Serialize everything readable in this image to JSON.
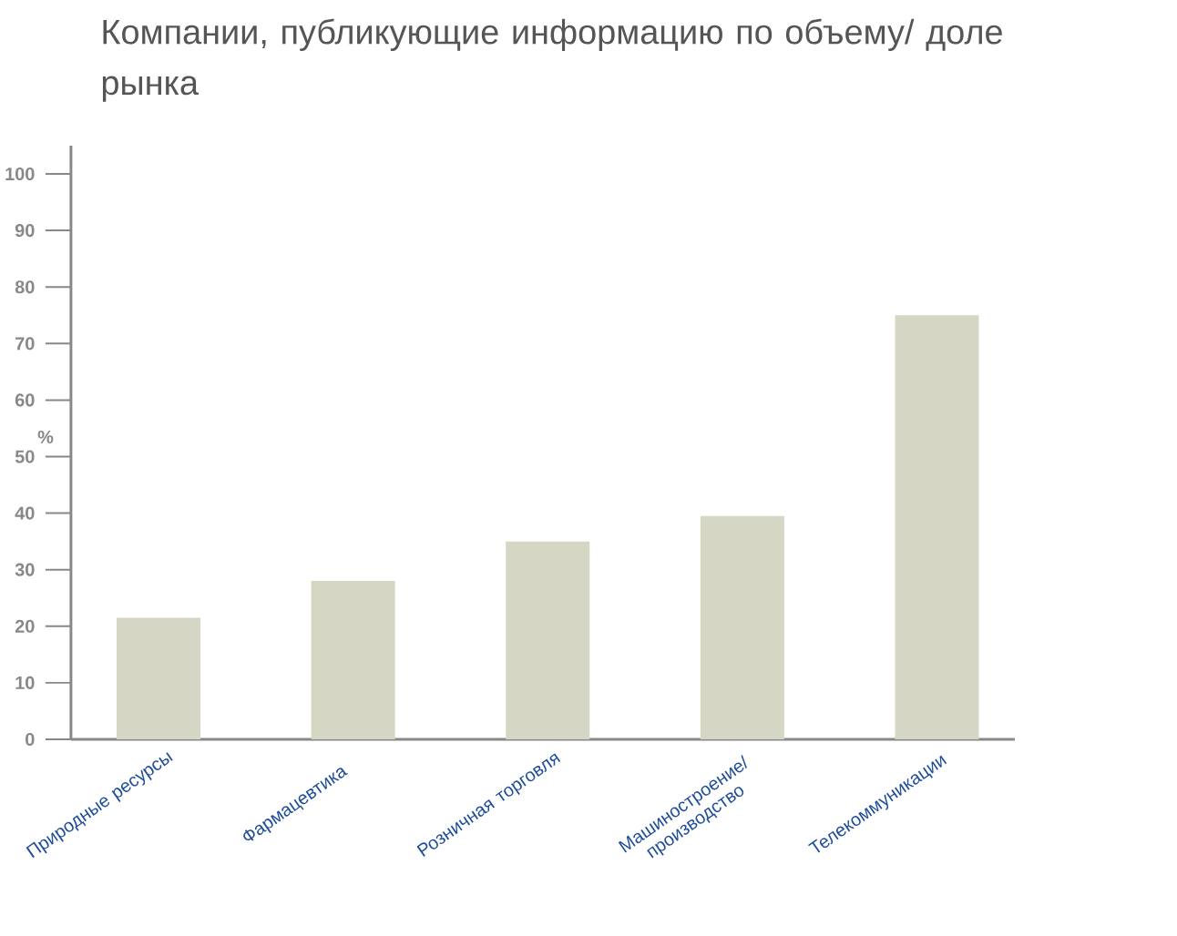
{
  "chart_data": {
    "type": "bar",
    "title": "Компании, публикующие информацию по объему/ доле рынка",
    "ylabel": "%",
    "categories": [
      "Природные ресурсы",
      "Фармацевтика",
      "Розничная торговля",
      "Машиностроение/ производство",
      "Телекоммуникации"
    ],
    "values": [
      21.5,
      28,
      35,
      39.5,
      75
    ],
    "color": "#d6d6c4",
    "ylim": [
      0,
      105
    ],
    "yticks": [
      0,
      10,
      20,
      30,
      40,
      50,
      60,
      70,
      80,
      90,
      100
    ],
    "grid": false
  }
}
